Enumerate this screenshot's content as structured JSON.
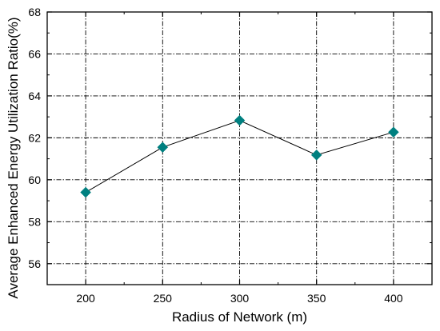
{
  "chart_data": {
    "type": "line",
    "xlabel": "Radius of Network (m)",
    "ylabel": "Average Enhanced Energy Utilization Ratio(%)",
    "x": [
      200,
      250,
      300,
      350,
      400
    ],
    "xlim": [
      175,
      425
    ],
    "ylim": [
      55,
      68
    ],
    "xticks": [
      200,
      250,
      300,
      350,
      400
    ],
    "yticks": [
      56,
      58,
      60,
      62,
      64,
      66,
      68
    ],
    "grid": true,
    "series": [
      {
        "values": [
          59.4,
          61.55,
          62.83,
          61.18,
          62.27
        ],
        "line_color": "#000000",
        "marker": "diamond",
        "marker_color": "#008080"
      }
    ]
  }
}
